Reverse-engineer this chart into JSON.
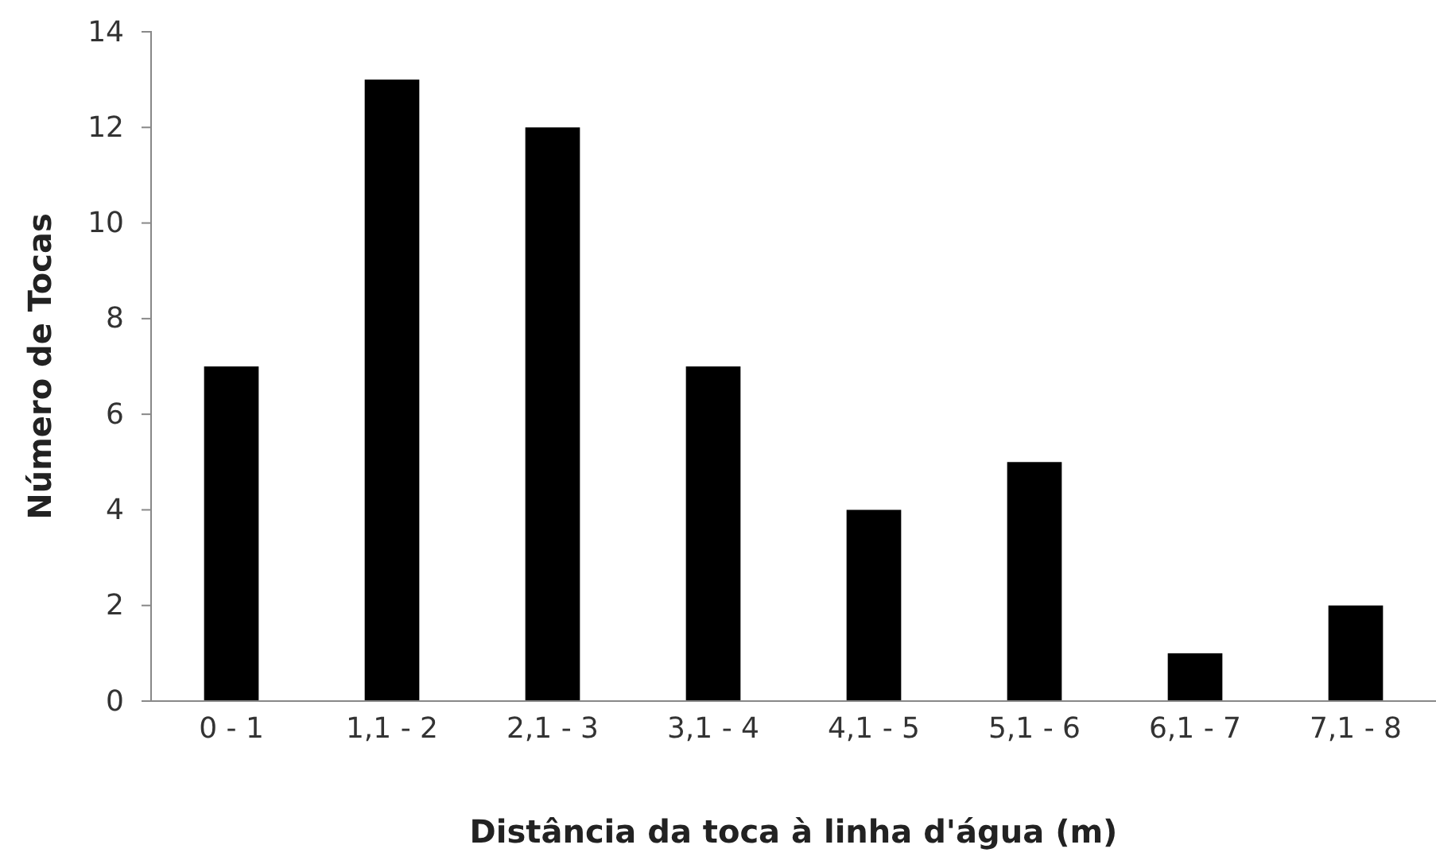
{
  "chart_data": {
    "type": "bar",
    "xlabel": "Distância da toca à linha d'água (m)",
    "ylabel": "Número de Tocas",
    "categories": [
      "0 - 1",
      "1,1 - 2",
      "2,1 - 3",
      "3,1 - 4",
      "4,1 - 5",
      "5,1 - 6",
      "6,1 - 7",
      "7,1 - 8"
    ],
    "values": [
      7,
      13,
      12,
      7,
      4,
      5,
      1,
      2
    ],
    "color": "#000000",
    "ylim": [
      0,
      14
    ],
    "yticks": [
      0,
      2,
      4,
      6,
      8,
      10,
      12,
      14
    ],
    "grid": false
  }
}
